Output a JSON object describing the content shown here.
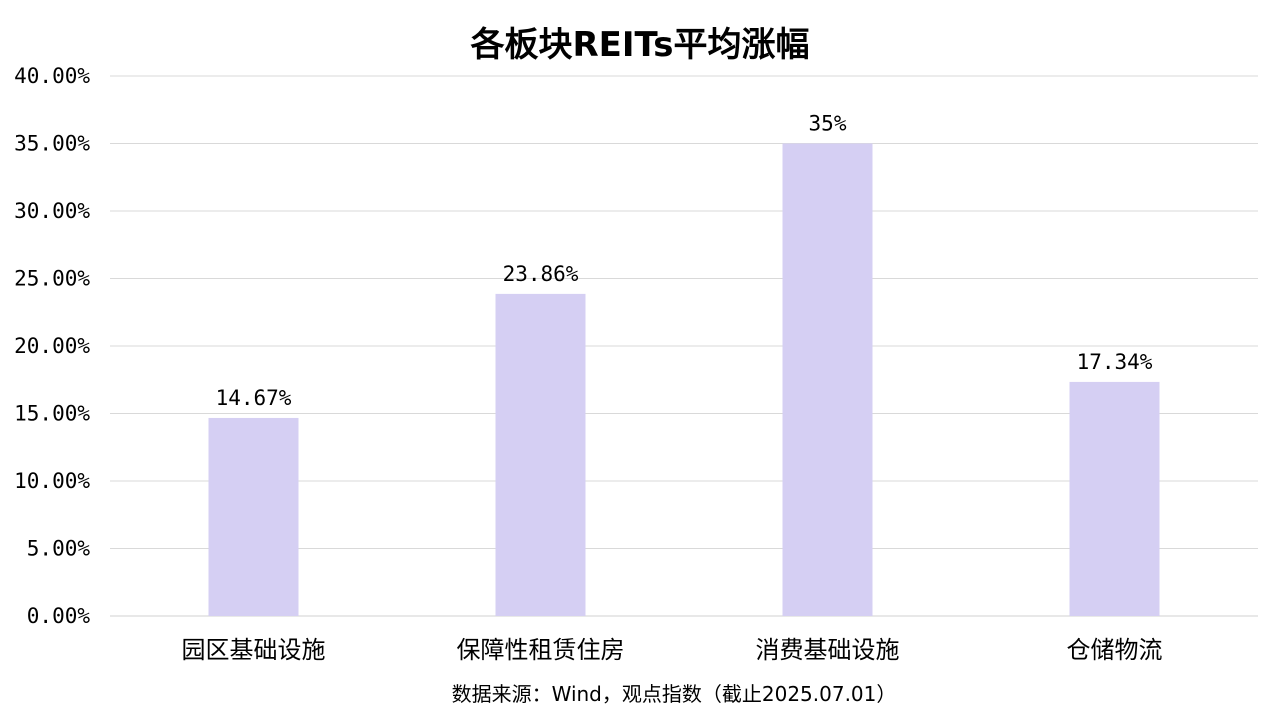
{
  "chart_data": {
    "type": "bar",
    "title": "各板块REITs平均涨幅",
    "categories": [
      "园区基础设施",
      "保障性租赁住房",
      "消费基础设施",
      "仓储物流"
    ],
    "values": [
      14.67,
      23.86,
      35,
      17.34
    ],
    "data_labels": [
      "14.67%",
      "23.86%",
      "35%",
      "17.34%"
    ],
    "yticks": [
      0,
      5,
      10,
      15,
      20,
      25,
      30,
      35,
      40
    ],
    "ytick_labels": [
      "0.00%",
      "5.00%",
      "10.00%",
      "15.00%",
      "20.00%",
      "25.00%",
      "30.00%",
      "35.00%",
      "40.00%"
    ],
    "ylim": [
      0,
      40
    ],
    "xlabel": "",
    "ylabel": "",
    "grid": true,
    "legend": "none",
    "bar_color": "#d5cff3",
    "grid_color": "#d9d9d9",
    "source": "数据来源：Wind，观点指数（截止2025.07.01）"
  }
}
